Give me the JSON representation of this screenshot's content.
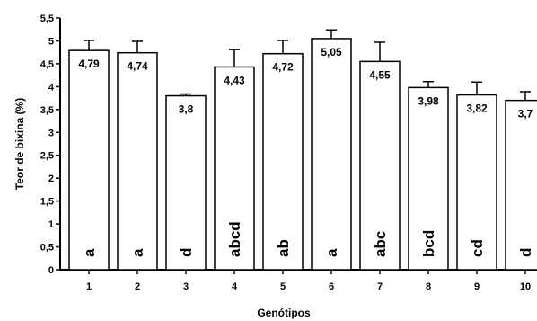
{
  "chart_data": {
    "type": "bar",
    "title": "",
    "xlabel": "Genótipos",
    "ylabel": "Teor de bixina  (%)",
    "ylim": [
      0,
      5.5
    ],
    "ytick_step": 0.5,
    "yticks": [
      "0",
      "0,5",
      "1",
      "1,5",
      "2",
      "2,5",
      "3",
      "3,5",
      "4",
      "4,5",
      "5",
      "5,5"
    ],
    "grid": false,
    "legend": "none",
    "categories": [
      "1",
      "2",
      "3",
      "4",
      "5",
      "6",
      "7",
      "8",
      "9",
      "10"
    ],
    "values": [
      4.79,
      4.74,
      3.8,
      4.43,
      4.72,
      5.05,
      4.55,
      3.98,
      3.82,
      3.7
    ],
    "value_labels": [
      "4,79",
      "4,74",
      "3,8",
      "4,43",
      "4,72",
      "5,05",
      "4,55",
      "3,98",
      "3,82",
      "3,7"
    ],
    "error_upper": [
      5.01,
      4.99,
      3.84,
      4.81,
      5.01,
      5.24,
      4.97,
      4.11,
      4.1,
      3.89
    ],
    "group_letters": [
      "a",
      "a",
      "d",
      "abcd",
      "ab",
      "a",
      "abc",
      "bcd",
      "cd",
      "d"
    ],
    "colors": {
      "bar_fill": "#ffffff",
      "bar_stroke": "#000000",
      "axis": "#000000"
    }
  }
}
